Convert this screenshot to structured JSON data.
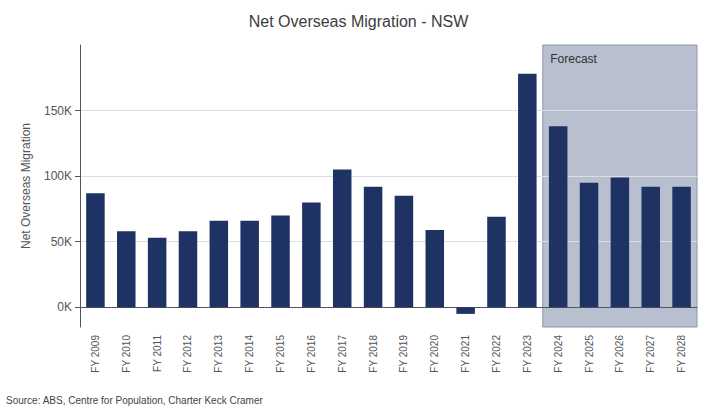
{
  "chart_data": {
    "type": "bar",
    "title": "Net Overseas Migration - NSW",
    "ylabel": "Net Overseas Migration",
    "source": "Source: ABS, Centre for Population, Charter Keck Cramer",
    "categories": [
      "FY 2009",
      "FY 2010",
      "FY 2011",
      "FY 2012",
      "FY 2013",
      "FY 2014",
      "FY 2015",
      "FY 2016",
      "FY 2017",
      "FY 2018",
      "FY 2019",
      "FY 2020",
      "FY 2021",
      "FY 2022",
      "FY 2023",
      "FY 2024",
      "FY 2025",
      "FY 2026",
      "FY 2027",
      "FY 2028"
    ],
    "values": [
      87000,
      58000,
      53000,
      58000,
      66000,
      66000,
      70000,
      80000,
      105000,
      92000,
      85000,
      59000,
      -5000,
      69000,
      178000,
      138000,
      95000,
      99000,
      92000,
      92000
    ],
    "color": "#1f3264",
    "annotations": [
      {
        "text": "Forecast",
        "x": "FY 2024",
        "color": "#b8c0d0"
      }
    ],
    "ylim": [
      -15000,
      200000
    ],
    "yticks": [
      {
        "value": 0,
        "label": "0K"
      },
      {
        "value": 50000,
        "label": "50K"
      },
      {
        "value": 100000,
        "label": "100K"
      },
      {
        "value": 150000,
        "label": "150K"
      }
    ],
    "grid": true
  }
}
